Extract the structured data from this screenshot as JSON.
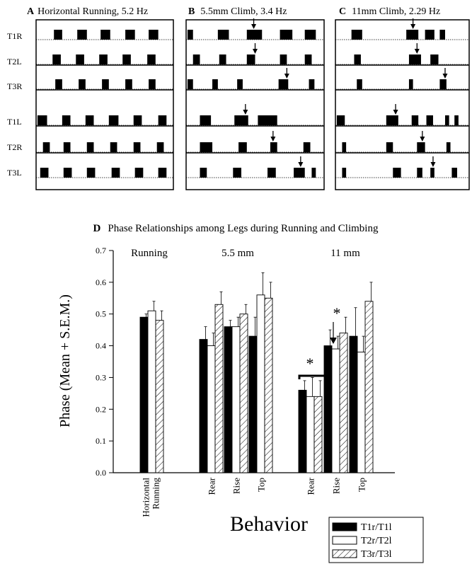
{
  "panels": [
    {
      "letter": "A",
      "title": "Horizontal Running, 5.2 Hz",
      "rows": [
        {
          "label": "T1R",
          "bursts": [
            [
              0.13,
              0.19
            ],
            [
              0.3,
              0.37
            ],
            [
              0.47,
              0.54
            ],
            [
              0.65,
              0.72
            ],
            [
              0.82,
              0.89
            ]
          ],
          "arrows": []
        },
        {
          "label": "T2L",
          "bursts": [
            [
              0.12,
              0.18
            ],
            [
              0.29,
              0.35
            ],
            [
              0.46,
              0.52
            ],
            [
              0.63,
              0.69
            ],
            [
              0.81,
              0.87
            ]
          ],
          "arrows": []
        },
        {
          "label": "T3R",
          "bursts": [
            [
              0.14,
              0.19
            ],
            [
              0.31,
              0.36
            ],
            [
              0.48,
              0.53
            ],
            [
              0.65,
              0.7
            ],
            [
              0.82,
              0.87
            ]
          ],
          "arrows": []
        },
        {
          "label": "T1L",
          "bursts": [
            [
              0.01,
              0.08
            ],
            [
              0.19,
              0.25
            ],
            [
              0.36,
              0.42
            ],
            [
              0.53,
              0.6
            ],
            [
              0.71,
              0.77
            ],
            [
              0.89,
              0.95
            ]
          ],
          "arrows": []
        },
        {
          "label": "T2R",
          "bursts": [
            [
              0.05,
              0.1
            ],
            [
              0.2,
              0.25
            ],
            [
              0.37,
              0.42
            ],
            [
              0.54,
              0.59
            ],
            [
              0.71,
              0.76
            ],
            [
              0.88,
              0.93
            ]
          ],
          "arrows": []
        },
        {
          "label": "T3L",
          "bursts": [
            [
              0.03,
              0.09
            ],
            [
              0.2,
              0.26
            ],
            [
              0.37,
              0.43
            ],
            [
              0.55,
              0.61
            ],
            [
              0.72,
              0.78
            ],
            [
              0.89,
              0.95
            ]
          ],
          "arrows": []
        }
      ]
    },
    {
      "letter": "B",
      "title": "5.5mm Climb, 3.4 Hz",
      "rows": [
        {
          "label": "",
          "bursts": [
            [
              0.01,
              0.05
            ],
            [
              0.23,
              0.31
            ],
            [
              0.44,
              0.55
            ],
            [
              0.68,
              0.77
            ],
            [
              0.86,
              0.94
            ]
          ],
          "arrows": [
            0.49
          ]
        },
        {
          "label": "",
          "bursts": [
            [
              0.05,
              0.1
            ],
            [
              0.24,
              0.29
            ],
            [
              0.44,
              0.5
            ],
            [
              0.68,
              0.73
            ],
            [
              0.86,
              0.91
            ]
          ],
          "arrows": [
            0.5
          ]
        },
        {
          "label": "",
          "bursts": [
            [
              0.01,
              0.05
            ],
            [
              0.19,
              0.23
            ],
            [
              0.37,
              0.41
            ],
            [
              0.67,
              0.74
            ],
            [
              0.89,
              0.93
            ]
          ],
          "arrows": [
            0.73
          ]
        },
        {
          "label": "",
          "bursts": [
            [
              0.1,
              0.18
            ],
            [
              0.35,
              0.45
            ],
            [
              0.52,
              0.66
            ]
          ],
          "arrows": [
            0.43
          ]
        },
        {
          "label": "",
          "bursts": [
            [
              0.1,
              0.19
            ],
            [
              0.38,
              0.44
            ],
            [
              0.61,
              0.66
            ],
            [
              0.85,
              0.9
            ]
          ],
          "arrows": [
            0.63
          ]
        },
        {
          "label": "",
          "bursts": [
            [
              0.1,
              0.15
            ],
            [
              0.34,
              0.4
            ],
            [
              0.59,
              0.65
            ],
            [
              0.78,
              0.86
            ],
            [
              0.91,
              0.94
            ]
          ],
          "arrows": [
            0.83
          ]
        }
      ]
    },
    {
      "letter": "C",
      "title": "11mm Climb, 2.29 Hz",
      "rows": [
        {
          "label": "",
          "bursts": [
            [
              0.12,
              0.2
            ],
            [
              0.53,
              0.62
            ],
            [
              0.67,
              0.74
            ],
            [
              0.78,
              0.82
            ]
          ],
          "arrows": [
            0.58
          ]
        },
        {
          "label": "",
          "bursts": [
            [
              0.14,
              0.19
            ],
            [
              0.55,
              0.64
            ],
            [
              0.71,
              0.77
            ]
          ],
          "arrows": [
            0.61
          ]
        },
        {
          "label": "",
          "bursts": [
            [
              0.16,
              0.2
            ],
            [
              0.55,
              0.58
            ],
            [
              0.78,
              0.83
            ]
          ],
          "arrows": [
            0.82
          ]
        },
        {
          "label": "",
          "bursts": [
            [
              0.01,
              0.07
            ],
            [
              0.38,
              0.47
            ],
            [
              0.57,
              0.62
            ],
            [
              0.68,
              0.73
            ],
            [
              0.82,
              0.85
            ],
            [
              0.89,
              0.92
            ]
          ],
          "arrows": [
            0.45
          ]
        },
        {
          "label": "",
          "bursts": [
            [
              0.05,
              0.08
            ],
            [
              0.38,
              0.43
            ],
            [
              0.61,
              0.67
            ],
            [
              0.83,
              0.86
            ]
          ],
          "arrows": [
            0.65
          ]
        },
        {
          "label": "",
          "bursts": [
            [
              0.05,
              0.08
            ],
            [
              0.43,
              0.49
            ],
            [
              0.61,
              0.65
            ],
            [
              0.71,
              0.74
            ],
            [
              0.87,
              0.91
            ]
          ],
          "arrows": [
            0.73
          ]
        }
      ]
    }
  ],
  "chart_data": {
    "type": "bar",
    "panel_letter": "D",
    "title": "Phase Relationships among Legs during Running and Climbing",
    "xlabel": "Behavior",
    "ylabel": "Phase (Mean + S.E.M.)",
    "ylim": [
      0.0,
      0.7
    ],
    "yticks": [
      "0.0",
      "0.1",
      "0.2",
      "0.3",
      "0.4",
      "0.5",
      "0.6",
      "0.7"
    ],
    "group_labels": [
      "Running",
      "5.5 mm",
      "11 mm"
    ],
    "categories": [
      "Horizontal Running",
      "Rear",
      "Rise",
      "Top",
      "Rear",
      "Rise",
      "Top"
    ],
    "series": [
      {
        "name": "T1r/T1l",
        "values": [
          0.49,
          0.42,
          0.46,
          0.43,
          0.26,
          0.4,
          0.43
        ],
        "errors": [
          0.01,
          0.04,
          0.02,
          0.06,
          0.03,
          0.05,
          0.09
        ]
      },
      {
        "name": "T2r/T2l",
        "values": [
          0.51,
          0.4,
          0.46,
          0.56,
          0.24,
          0.39,
          0.38
        ],
        "errors": [
          0.03,
          0.04,
          0.03,
          0.07,
          0.06,
          0.04,
          0.05
        ]
      },
      {
        "name": "T3r/T3l",
        "values": [
          0.48,
          0.53,
          0.5,
          0.55,
          0.24,
          0.44,
          0.54
        ],
        "errors": [
          0.03,
          0.04,
          0.03,
          0.05,
          0.05,
          0.05,
          0.06
        ]
      }
    ],
    "annotations": [
      "*",
      "*"
    ],
    "legend_position": "bottom-right"
  }
}
